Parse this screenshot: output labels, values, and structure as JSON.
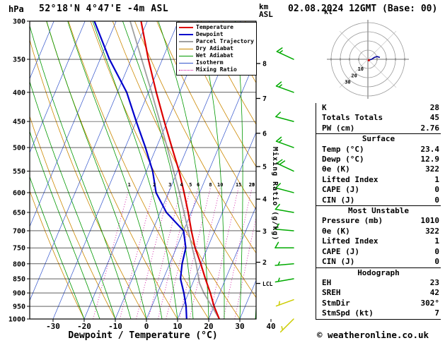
{
  "header": {
    "station": "52°18'N  4°47'E  -4m ASL",
    "datetime": "02.08.2024 12GMT (Base: 00)",
    "pressure_unit": "hPa",
    "alt_unit_line1": "km",
    "alt_unit_line2": "ASL",
    "kt_label": "kt"
  },
  "axes": {
    "xlabel": "Dewpoint / Temperature (°C)",
    "right_label": "Mixing Ratio (g/kg)",
    "pressure_ticks": [
      300,
      350,
      400,
      450,
      500,
      550,
      600,
      650,
      700,
      750,
      800,
      850,
      900,
      950,
      1000
    ],
    "temp_ticks": [
      -30,
      -20,
      -10,
      0,
      10,
      20,
      30,
      40
    ],
    "km_ticks": [
      {
        "label": "8",
        "p": 356
      },
      {
        "label": "7",
        "p": 410
      },
      {
        "label": "6",
        "p": 472
      },
      {
        "label": "5",
        "p": 540
      },
      {
        "label": "4",
        "p": 616
      },
      {
        "label": "3",
        "p": 701
      },
      {
        "label": "2",
        "p": 795
      },
      {
        "label": "LCL",
        "p": 866
      }
    ]
  },
  "style": {
    "temperature": "#dd0000",
    "dewpoint": "#0000cc",
    "parcel": "#a0a0a0",
    "dry_adiabat": "#cc8800",
    "wet_adiabat": "#009900",
    "isotherm": "#3355cc",
    "mixing_ratio": "#cc0099",
    "wind_green": "#00aa00",
    "wind_yellow": "#cccc00"
  },
  "legend": {
    "items": [
      {
        "label": "Temperature",
        "color": "#dd0000",
        "dash": "solid",
        "thickness": 2
      },
      {
        "label": "Dewpoint",
        "color": "#0000cc",
        "dash": "solid",
        "thickness": 2
      },
      {
        "label": "Parcel Trajectory",
        "color": "#a0a0a0",
        "dash": "solid",
        "thickness": 2
      },
      {
        "label": "Dry Adiabat",
        "color": "#cc8800",
        "dash": "solid",
        "thickness": 1
      },
      {
        "label": "Wet Adiabat",
        "color": "#009900",
        "dash": "solid",
        "thickness": 1
      },
      {
        "label": "Isotherm",
        "color": "#3355cc",
        "dash": "solid",
        "thickness": 1
      },
      {
        "label": "Mixing Ratio",
        "color": "#cc0099",
        "dash": "dotted",
        "thickness": 1
      }
    ]
  },
  "chart_data": {
    "type": "line",
    "variant": "skew-t-log-p",
    "pressure_axis_hPa": {
      "min": 300,
      "max": 1000,
      "scale": "log"
    },
    "temperature_axis_C": {
      "min": -30,
      "max": 40,
      "tick_step": 10
    },
    "series": [
      {
        "key": "parcel-trajectory",
        "name": "Parcel Trajectory",
        "color": "#a0a0a0",
        "width": 1.8,
        "points_p_T": [
          [
            1000,
            23.4
          ],
          [
            900,
            14.9
          ],
          [
            865,
            12.2
          ],
          [
            800,
            8.5
          ],
          [
            700,
            1.5
          ],
          [
            600,
            -6.5
          ],
          [
            500,
            -16.5
          ],
          [
            400,
            -29
          ],
          [
            300,
            -45.5
          ]
        ]
      },
      {
        "key": "dewpoint",
        "name": "Dewpoint",
        "color": "#0000cc",
        "width": 2.2,
        "points_p_T": [
          [
            1000,
            12.9
          ],
          [
            950,
            11
          ],
          [
            900,
            8.5
          ],
          [
            850,
            5.5
          ],
          [
            800,
            4
          ],
          [
            750,
            3
          ],
          [
            700,
            0
          ],
          [
            650,
            -8
          ],
          [
            600,
            -14
          ],
          [
            550,
            -18
          ],
          [
            500,
            -23.5
          ],
          [
            450,
            -30
          ],
          [
            400,
            -37
          ],
          [
            350,
            -47
          ],
          [
            300,
            -57
          ]
        ]
      },
      {
        "key": "temperature",
        "name": "Temperature",
        "color": "#dd0000",
        "width": 2.2,
        "points_p_T": [
          [
            1000,
            23.4
          ],
          [
            950,
            20
          ],
          [
            900,
            17
          ],
          [
            850,
            13.5
          ],
          [
            800,
            10
          ],
          [
            750,
            6
          ],
          [
            700,
            2.5
          ],
          [
            650,
            -1
          ],
          [
            600,
            -5
          ],
          [
            550,
            -9.5
          ],
          [
            500,
            -15
          ],
          [
            450,
            -21
          ],
          [
            400,
            -27.5
          ],
          [
            350,
            -34.5
          ],
          [
            300,
            -42
          ]
        ]
      }
    ],
    "mixing_ratio_lines_g_kg": [
      1,
      2,
      3,
      4,
      5,
      6,
      8,
      10,
      15,
      20,
      25
    ],
    "isotherms_C": {
      "min": -80,
      "max": 40,
      "step": 10
    },
    "dry_adiabats_theta_C": {
      "min": -20,
      "max": 150,
      "step": 10
    },
    "wet_adiabat_surface_temps_C": [
      -20,
      -15,
      -10,
      -5,
      0,
      5,
      10,
      15,
      20,
      25,
      30,
      35,
      40,
      45
    ],
    "wind_barbs": [
      {
        "p": 350,
        "dir_deg": 295,
        "speed_kt": 15,
        "color": "#00aa00"
      },
      {
        "p": 400,
        "dir_deg": 290,
        "speed_kt": 15,
        "color": "#00aa00"
      },
      {
        "p": 450,
        "dir_deg": 285,
        "speed_kt": 10,
        "color": "#00aa00"
      },
      {
        "p": 500,
        "dir_deg": 290,
        "speed_kt": 15,
        "color": "#00aa00"
      },
      {
        "p": 550,
        "dir_deg": 295,
        "speed_kt": 20,
        "color": "#00aa00"
      },
      {
        "p": 600,
        "dir_deg": 285,
        "speed_kt": 10,
        "color": "#00aa00"
      },
      {
        "p": 650,
        "dir_deg": 280,
        "speed_kt": 10,
        "color": "#00aa00"
      },
      {
        "p": 700,
        "dir_deg": 275,
        "speed_kt": 10,
        "color": "#00aa00"
      },
      {
        "p": 750,
        "dir_deg": 270,
        "speed_kt": 10,
        "color": "#00aa00"
      },
      {
        "p": 800,
        "dir_deg": 265,
        "speed_kt": 5,
        "color": "#00aa00"
      },
      {
        "p": 850,
        "dir_deg": 260,
        "speed_kt": 5,
        "color": "#00aa00"
      },
      {
        "p": 925,
        "dir_deg": 250,
        "speed_kt": 5,
        "color": "#cccc00"
      },
      {
        "p": 1000,
        "dir_deg": 225,
        "speed_kt": 5,
        "color": "#cccc00"
      }
    ],
    "hodograph": {
      "rings_kt": [
        10,
        20,
        30,
        40
      ],
      "ring_labels": [
        "10",
        "20",
        "30"
      ],
      "trace_u_v_kt": [
        [
          1,
          -1
        ],
        [
          4,
          0
        ],
        [
          7,
          2
        ],
        [
          10,
          3
        ],
        [
          13,
          2
        ]
      ]
    }
  },
  "panel": {
    "indices": [
      {
        "label": "K",
        "value": "28"
      },
      {
        "label": "Totals Totals",
        "value": "45"
      },
      {
        "label": "PW (cm)",
        "value": "2.76"
      }
    ],
    "surface": {
      "header": "Surface",
      "rows": [
        {
          "label": "Temp (°C)",
          "value": "23.4"
        },
        {
          "label": "Dewp (°C)",
          "value": "12.9"
        },
        {
          "label": "θe (K)",
          "value": "322"
        },
        {
          "label": "Lifted Index",
          "value": "1"
        },
        {
          "label": "CAPE (J)",
          "value": "0"
        },
        {
          "label": "CIN (J)",
          "value": "0"
        }
      ]
    },
    "most_unstable": {
      "header": "Most Unstable",
      "rows": [
        {
          "label": "Pressure (mb)",
          "value": "1010"
        },
        {
          "label": "θe (K)",
          "value": "322"
        },
        {
          "label": "Lifted Index",
          "value": "1"
        },
        {
          "label": "CAPE (J)",
          "value": "0"
        },
        {
          "label": "CIN (J)",
          "value": "0"
        }
      ]
    },
    "hodograph_stats": {
      "header": "Hodograph",
      "rows": [
        {
          "label": "EH",
          "value": "23"
        },
        {
          "label": "SREH",
          "value": "42"
        },
        {
          "label": "StmDir",
          "value": "302°"
        },
        {
          "label": "StmSpd (kt)",
          "value": "7"
        }
      ]
    }
  },
  "footer": {
    "credit": "© weatheronline.co.uk"
  }
}
